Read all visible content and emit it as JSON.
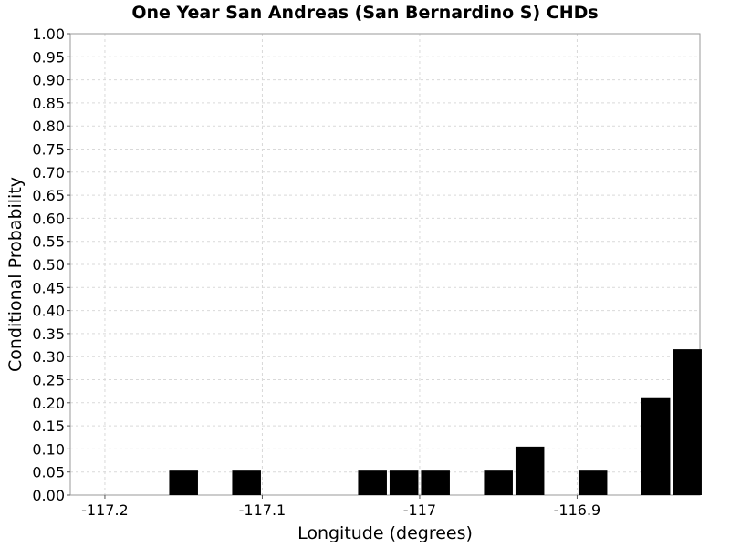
{
  "chart_data": {
    "type": "bar",
    "title": "One Year San Andreas (San Bernardino S) CHDs",
    "xlabel": "Longitude (degrees)",
    "ylabel": "Conditional Probability",
    "xlim": [
      -117.222,
      -116.822
    ],
    "ylim": [
      0,
      1.0
    ],
    "x_ticks": [
      -117.2,
      -117.1,
      -117.0,
      -116.9
    ],
    "x_tick_labels": [
      "-117.2",
      "-117.1",
      "-117",
      "-116.9"
    ],
    "y_ticks": [
      0.0,
      0.05,
      0.1,
      0.15,
      0.2,
      0.25,
      0.3,
      0.35,
      0.4,
      0.45,
      0.5,
      0.55,
      0.6,
      0.65,
      0.7,
      0.75,
      0.8,
      0.85,
      0.9,
      0.95,
      1.0
    ],
    "y_tick_labels": [
      "0.00",
      "0.05",
      "0.10",
      "0.15",
      "0.20",
      "0.25",
      "0.30",
      "0.35",
      "0.40",
      "0.45",
      "0.50",
      "0.55",
      "0.60",
      "0.65",
      "0.70",
      "0.75",
      "0.80",
      "0.85",
      "0.90",
      "0.95",
      "1.00"
    ],
    "grid": true,
    "bar_color": "#000000",
    "bin_width": 0.02,
    "x": [
      -117.15,
      -117.11,
      -117.03,
      -117.01,
      -116.99,
      -116.95,
      -116.93,
      -116.89,
      -116.85,
      -116.83
    ],
    "values": [
      0.053,
      0.053,
      0.053,
      0.053,
      0.053,
      0.053,
      0.105,
      0.053,
      0.21,
      0.316
    ]
  }
}
